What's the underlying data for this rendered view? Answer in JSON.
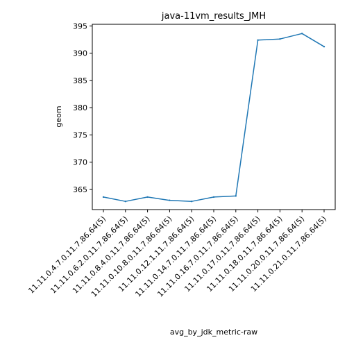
{
  "chart_data": {
    "type": "line",
    "title": "java-11vm_results_JMH",
    "xlabel": "avg_by_jdk_metric-raw",
    "ylabel": "geom",
    "categories": [
      "11.11.0.4.7.0.11.7.86.64(5)",
      "11.11.0.6.2.0.11.7.86.64(5)",
      "11.11.0.8.4.0.11.7.86.64(5)",
      "11.11.0.10.8.0.11.7.86.64(5)",
      "11.11.0.12.1.11.7.86.64(5)",
      "11.11.0.14.7.0.11.7.86.64(5)",
      "11.11.0.16.7.0.11.7.86.64(5)",
      "11.11.0.17.0.11.7.86.64(5)",
      "11.11.0.18.0.11.7.86.64(5)",
      "11.11.0.20.0.11.7.86.64(5)",
      "11.11.0.21.0.11.7.86.64(5)"
    ],
    "series": [
      {
        "values": [
          363.6,
          362.8,
          363.6,
          363.0,
          362.8,
          363.6,
          363.8,
          392.4,
          392.6,
          393.6,
          391.2
        ],
        "color": "#1f77b4"
      }
    ],
    "yticks": [
      365,
      370,
      375,
      380,
      385,
      390,
      395
    ],
    "ylim": [
      361.3,
      395.3
    ],
    "grid": false,
    "legend": false
  }
}
